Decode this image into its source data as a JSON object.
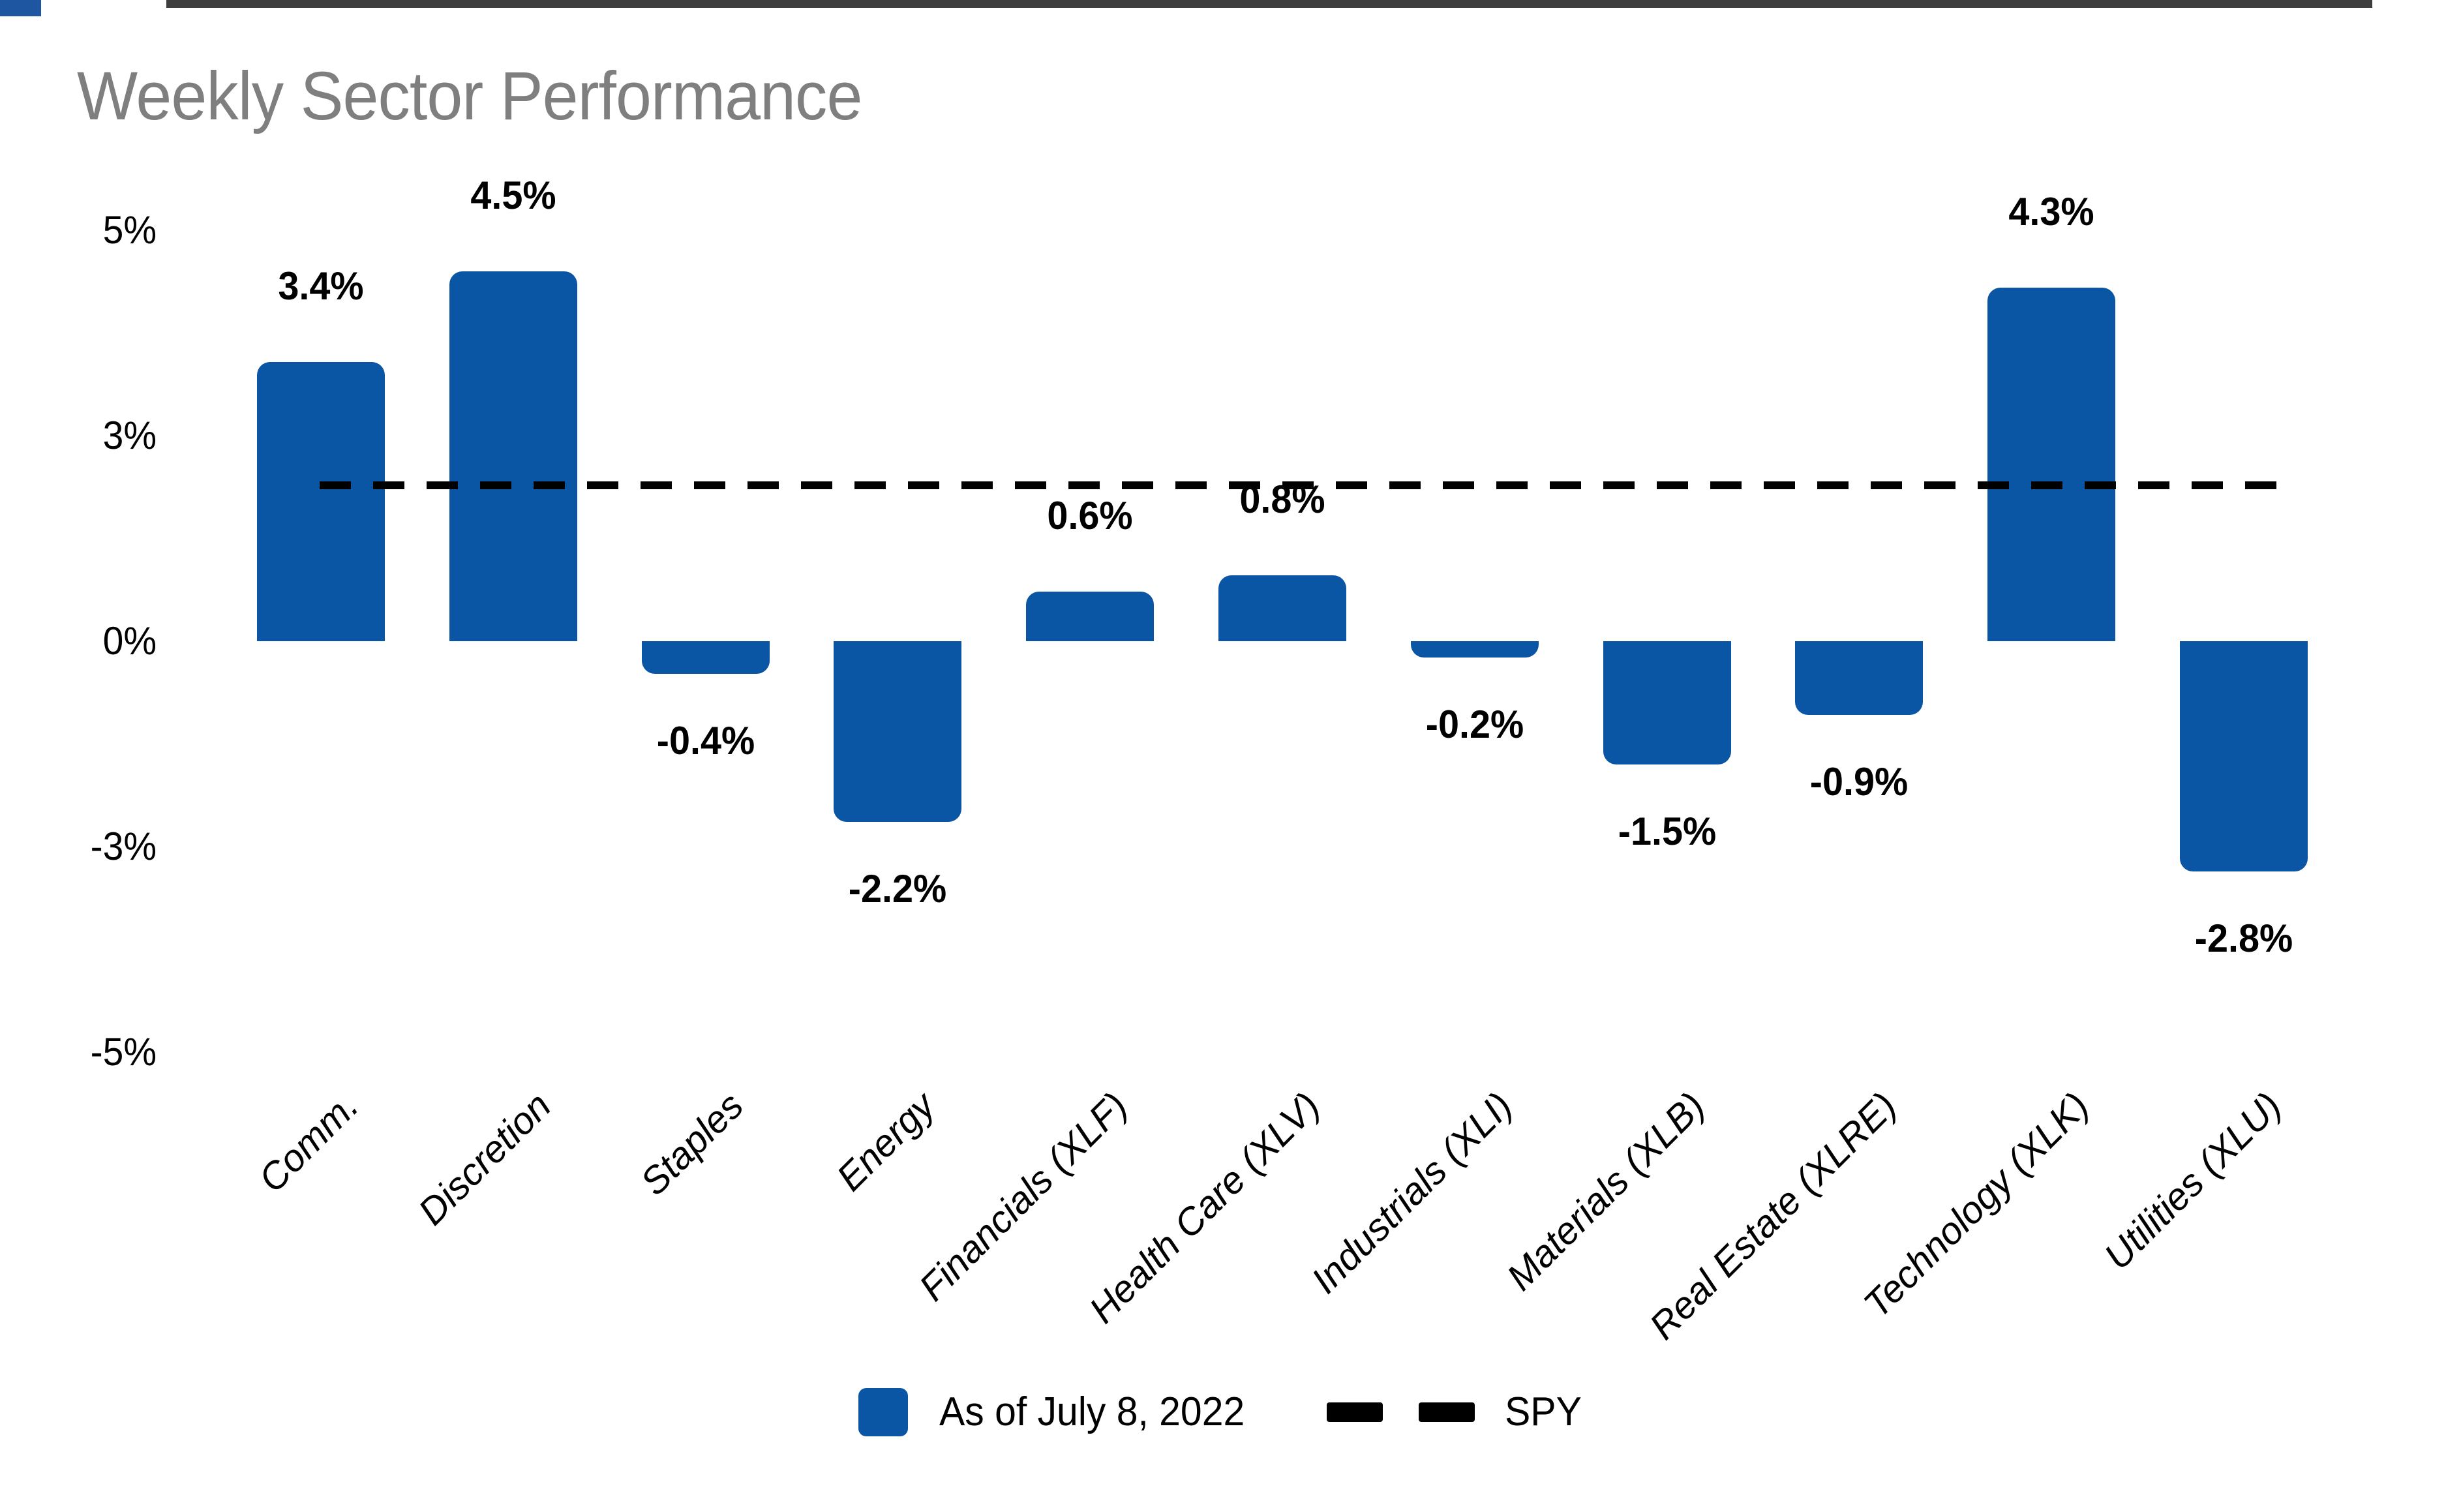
{
  "page": {
    "background": "#ffffff",
    "corner_mark_color": "#1f56a2"
  },
  "header": {
    "title": "Weekly Sector Performance",
    "title_color": "#7f7f7f"
  },
  "chart_data": {
    "type": "bar",
    "title": "Weekly Sector Performance",
    "categories": [
      "Comm.",
      "Discretion",
      "Staples",
      "Energy",
      "Financials (XLF)",
      "Health Care (XLV)",
      "Industrials (XLI)",
      "Materials (XLB)",
      "Real Estate (XLRE)",
      "Technology (XLK)",
      "Utilities (XLU)"
    ],
    "values": [
      3.4,
      4.5,
      -0.4,
      -2.2,
      0.6,
      0.8,
      -0.2,
      -1.5,
      -0.9,
      4.3,
      -2.8
    ],
    "value_labels": [
      "3.4%",
      "4.5%",
      "-0.4%",
      "-2.2%",
      "0.6%",
      "0.8%",
      "-0.2%",
      "-1.5%",
      "-0.9%",
      "4.3%",
      "-2.8%"
    ],
    "series_name": "As of July 8, 2022",
    "reference_line": {
      "name": "SPY",
      "value": 1.9,
      "style": "dashed",
      "color": "#000000"
    },
    "y_ticks": [
      "5%",
      "3%",
      "0%",
      "-3%",
      "-5%"
    ],
    "y_tick_values": [
      5,
      3,
      0,
      -3,
      -5
    ],
    "ylim": [
      -5,
      5
    ],
    "xlabel": "",
    "ylabel": "",
    "bar_color": "#0b55a5",
    "axis_line_color": "#3d3d3d",
    "grid": false,
    "legend_position": "bottom",
    "legend_entries": [
      "As of July 8, 2022",
      "SPY"
    ]
  }
}
